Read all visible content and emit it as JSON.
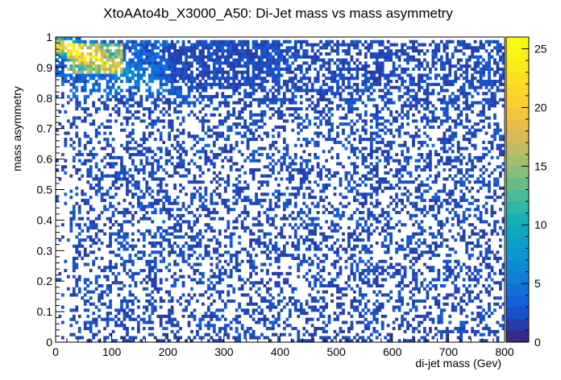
{
  "chart_data": {
    "type": "heatmap",
    "title": "XtoAAto4b_X3000_A50: Di-Jet mass vs mass asymmetry",
    "xlabel": "di-jet mass (Gev)",
    "ylabel": "mass asymmetry",
    "xlim": [
      0,
      800
    ],
    "ylim": [
      0,
      1
    ],
    "x_ticks": [
      "0",
      "100",
      "200",
      "300",
      "400",
      "500",
      "600",
      "700",
      "800"
    ],
    "y_ticks": [
      "0",
      "0.1",
      "0.2",
      "0.3",
      "0.4",
      "0.5",
      "0.6",
      "0.7",
      "0.8",
      "0.9",
      "1"
    ],
    "colorbar": {
      "range": [
        0,
        26
      ],
      "ticks": [
        "0",
        "5",
        "10",
        "15",
        "20",
        "25"
      ],
      "palette": "kBird"
    },
    "bins": {
      "x": 160,
      "y": 100
    },
    "description_of_density": {
      "peak_region": {
        "x": [
          20,
          120
        ],
        "y": [
          0.88,
          0.98
        ],
        "max_count": 25
      },
      "ridge": "high-count band along the top-left (mass asymmetry ~0.8-0.97, di-jet mass 20-250) falling toward larger mass",
      "bulk": "sparse counts of 1-3 across the full x range for asymmetry below ~0.8"
    }
  }
}
